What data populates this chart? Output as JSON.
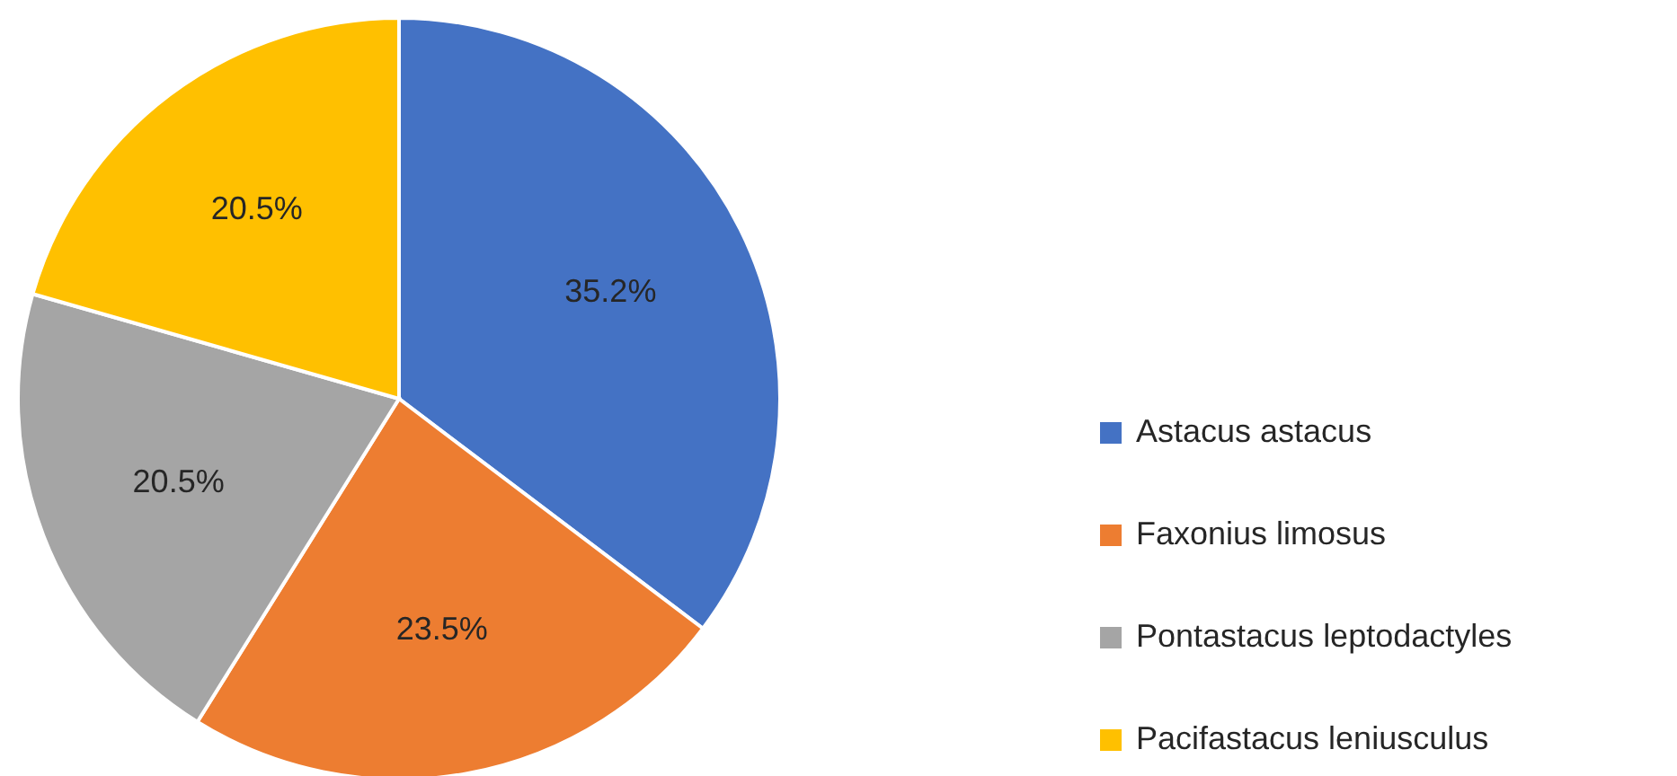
{
  "chart_data": {
    "type": "pie",
    "categories": [
      "Astacus astacus",
      "Faxonius limosus",
      "Pontastacus leptodactyles",
      "Pacifastacus leniusculus"
    ],
    "values": [
      35.2,
      23.5,
      20.5,
      20.5
    ],
    "colors": [
      "#4472c4",
      "#ed7d31",
      "#a5a5a5",
      "#ffc000"
    ],
    "value_labels": [
      "35.2%",
      "23.5%",
      "20.5%",
      "20.5%"
    ],
    "legend": "right"
  }
}
